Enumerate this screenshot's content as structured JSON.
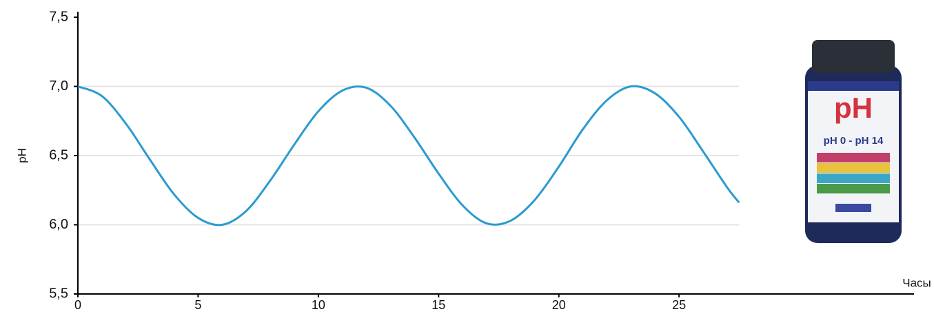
{
  "chart_data": {
    "type": "line",
    "x_label": "Часы",
    "y_label": "pH",
    "x": [
      0,
      1,
      2,
      3,
      4,
      5,
      6,
      7,
      8,
      9,
      10,
      11,
      12,
      13,
      14,
      15,
      16,
      17,
      18,
      19,
      20,
      21,
      22,
      23,
      24,
      25,
      26,
      27,
      27.5
    ],
    "series": [
      {
        "color": "#2a9bd0",
        "values": [
          7.0,
          6.93,
          6.73,
          6.47,
          6.22,
          6.05,
          6.0,
          6.1,
          6.32,
          6.58,
          6.82,
          6.97,
          6.99,
          6.86,
          6.63,
          6.37,
          6.14,
          6.01,
          6.03,
          6.18,
          6.42,
          6.69,
          6.9,
          7.0,
          6.95,
          6.78,
          6.53,
          6.27,
          6.16
        ]
      }
    ],
    "xlim": [
      0,
      35
    ],
    "ylim": [
      5.5,
      7.5
    ],
    "xticks": [
      0,
      5,
      10,
      15,
      20,
      25
    ],
    "yticks": [
      {
        "value": 5.5,
        "label": "5,5"
      },
      {
        "value": 6.0,
        "label": "6,0"
      },
      {
        "value": 6.5,
        "label": "6,5"
      },
      {
        "value": 7.0,
        "label": "7,0"
      },
      {
        "value": 7.5,
        "label": "7,5"
      }
    ],
    "grid": true
  },
  "product": {
    "brand": "pH",
    "range": "pH 0 - pH 14"
  }
}
